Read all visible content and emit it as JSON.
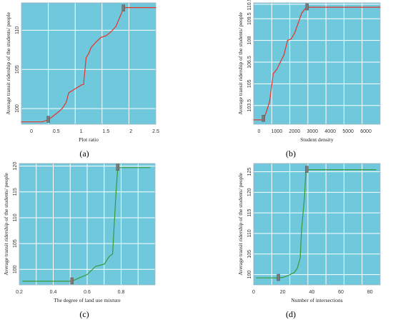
{
  "chart_data": [
    {
      "type": "line",
      "ylabel": "Average transit ridership of the students/ people",
      "xlabel": "Plot ratio",
      "xlim": [
        -0.2,
        2.5
      ],
      "ylim": [
        98,
        113.5
      ],
      "xticks": [
        0,
        0.5,
        1,
        1.5,
        2,
        2.5
      ],
      "xtick_labels": [
        "0",
        "0.5",
        "1",
        "1.5",
        "2",
        "2.5"
      ],
      "yticks": [
        100,
        105,
        110
      ],
      "ytick_labels": [
        "100",
        "105",
        "110"
      ],
      "x": [
        -0.2,
        0.22,
        0.35,
        0.45,
        0.55,
        0.63,
        0.7,
        0.75,
        0.8,
        0.9,
        1.0,
        1.05,
        1.1,
        1.15,
        1.2,
        1.3,
        1.4,
        1.5,
        1.6,
        1.7,
        1.78,
        1.85,
        1.9,
        2.5
      ],
      "y": [
        98.3,
        98.3,
        98.6,
        99.1,
        99.6,
        100.1,
        100.8,
        102.0,
        102.2,
        102.6,
        103.0,
        103.1,
        106.5,
        107.0,
        107.8,
        108.5,
        109.1,
        109.3,
        109.8,
        110.5,
        111.7,
        112.8,
        112.9,
        112.9
      ],
      "line_color": "#e8332b",
      "markers_x": [
        0.34,
        1.85
      ],
      "grid": true,
      "caption": "(a)"
    },
    {
      "type": "line",
      "ylabel": "Average transit ridership of the students/ people",
      "xlabel": "Student density",
      "xlim": [
        -300,
        6800
      ],
      "ylim": [
        102.2,
        110.6
      ],
      "xticks": [
        0,
        1000,
        2000,
        3000,
        4000,
        5000,
        6000
      ],
      "xtick_labels": [
        "0",
        "1000",
        "2000",
        "3000",
        "4000",
        "5000",
        "6000"
      ],
      "yticks": [
        103.5,
        105,
        106.5,
        108,
        109.5,
        110.5
      ],
      "ytick_labels": [
        "103.5",
        "105",
        "106.5",
        "108",
        "109.5",
        "110.5"
      ],
      "x": [
        -300,
        220,
        400,
        600,
        800,
        1000,
        1200,
        1400,
        1600,
        1800,
        2000,
        2200,
        2400,
        2600,
        2700,
        6800
      ],
      "y": [
        102.5,
        102.5,
        103.0,
        103.8,
        105.7,
        106.0,
        106.5,
        107.0,
        108.0,
        108.1,
        108.5,
        109.2,
        109.9,
        110.2,
        110.3,
        110.3
      ],
      "line_color": "#e8332b",
      "markers_x": [
        250,
        2700
      ],
      "grid": true,
      "caption": "(b)"
    },
    {
      "type": "line",
      "ylabel": "Average transit ridership of the students/ people",
      "xlabel": "The degree of land use mixture",
      "xlim": [
        0.2,
        1.0
      ],
      "ylim": [
        97,
        120.5
      ],
      "xticks": [
        0.2,
        0.4,
        0.6,
        0.8
      ],
      "xtick_labels": [
        "0.2",
        "0.4",
        "0.6",
        "0.8"
      ],
      "yticks": [
        100,
        105,
        110,
        115,
        120
      ],
      "ytick_labels": [
        "100",
        "105",
        "110",
        "115",
        "120"
      ],
      "x": [
        0.22,
        0.51,
        0.55,
        0.6,
        0.65,
        0.7,
        0.73,
        0.75,
        0.77,
        0.78,
        0.97
      ],
      "y": [
        97.7,
        97.7,
        98.3,
        99.0,
        100.6,
        101.0,
        102.5,
        103.0,
        115.0,
        119.7,
        119.7
      ],
      "line_color": "#3a9a3a",
      "markers_x": [
        0.51,
        0.78
      ],
      "grid": true,
      "caption": "(c)"
    },
    {
      "type": "line",
      "ylabel": "Average transit ridership of the students/ people",
      "xlabel": "Number of intersections",
      "xlim": [
        0,
        87
      ],
      "ylim": [
        97.5,
        127
      ],
      "xticks": [
        0,
        20,
        40,
        60,
        80
      ],
      "xtick_labels": [
        "0",
        "20",
        "40",
        "60",
        "80"
      ],
      "yticks": [
        100,
        105,
        110,
        115,
        120,
        125
      ],
      "ytick_labels": [
        "100",
        "105",
        "110",
        "115",
        "120",
        "125"
      ],
      "x": [
        2,
        16,
        20,
        24,
        28,
        30,
        32,
        33,
        35,
        36,
        84
      ],
      "y": [
        99.2,
        99.2,
        99.3,
        99.8,
        100.5,
        101.5,
        104.0,
        111.0,
        119.0,
        125.5,
        125.5
      ],
      "line_color": "#3a9a3a",
      "markers_x": [
        17,
        36.5
      ],
      "grid": true,
      "caption": "(d)"
    }
  ],
  "colors": {
    "plot_bg": "#6fc8dc",
    "grid": "#ffffff",
    "marker": "#7a7a7a",
    "axis_text": "#333333"
  }
}
